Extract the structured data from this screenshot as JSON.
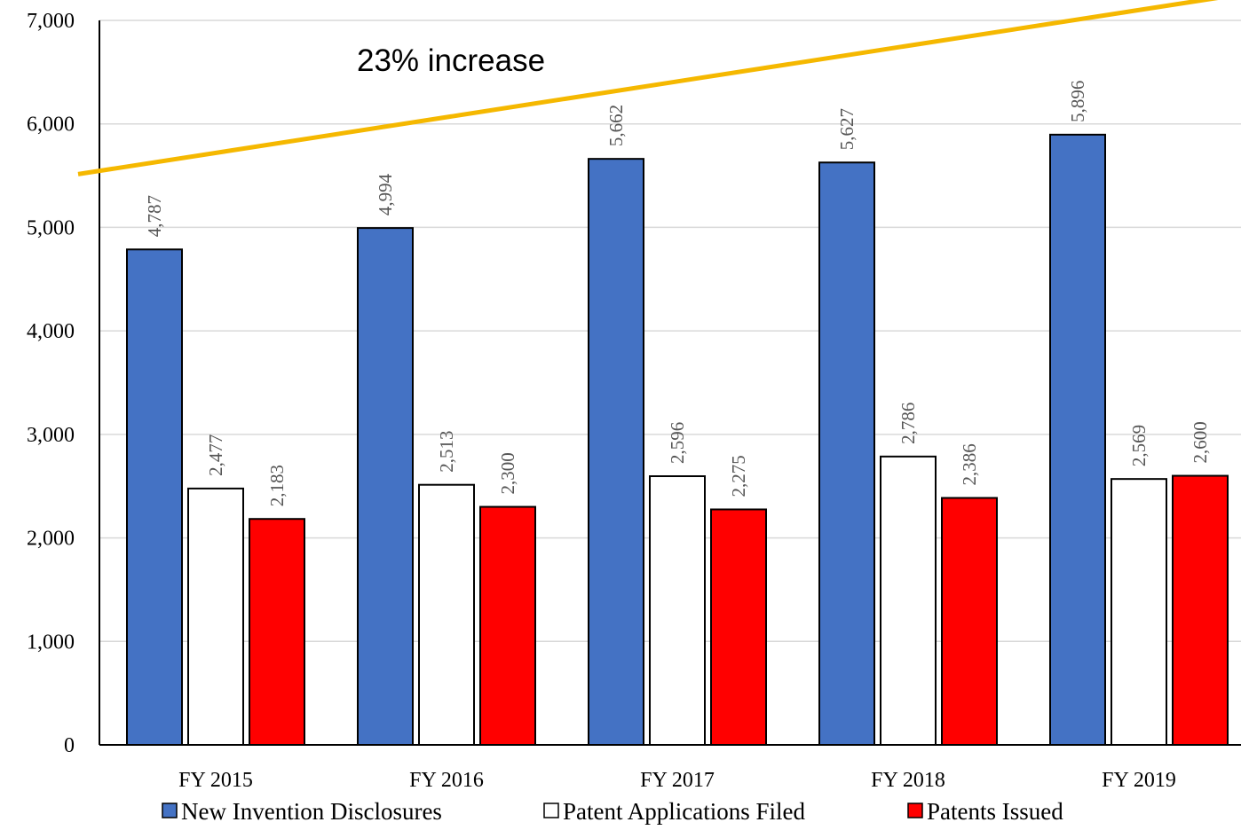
{
  "chart_data": {
    "type": "bar",
    "title": "",
    "xlabel": "",
    "ylabel": "",
    "categories": [
      "FY 2015",
      "FY 2016",
      "FY 2017",
      "FY 2018",
      "FY 2019"
    ],
    "series": [
      {
        "name": "New Invention Disclosures",
        "color": "#4472C4",
        "values": [
          4787,
          4994,
          5662,
          5627,
          5896
        ],
        "labels": [
          "4,787",
          "4,994",
          "5,662",
          "5,627",
          "5,896"
        ]
      },
      {
        "name": "Patent Applications Filed",
        "color": "#FFFFFF",
        "values": [
          2477,
          2513,
          2596,
          2786,
          2569
        ],
        "labels": [
          "2,477",
          "2,513",
          "2,596",
          "2,786",
          "2,569"
        ]
      },
      {
        "name": "Patents Issued",
        "color": "#FF0000",
        "values": [
          2183,
          2300,
          2275,
          2386,
          2600
        ],
        "labels": [
          "2,183",
          "2,300",
          "2,275",
          "2,386",
          "2,600"
        ]
      }
    ],
    "ylim": [
      0,
      7000
    ],
    "yticks": [
      0,
      1000,
      2000,
      3000,
      4000,
      5000,
      6000,
      7000
    ],
    "ytick_labels": [
      "0",
      "1,000",
      "2,000",
      "3,000",
      "4,000",
      "5,000",
      "6,000",
      "7,000"
    ],
    "grid": true,
    "legend_position": "bottom",
    "annotation": {
      "text": "23% increase",
      "line_color": "#F5B800",
      "line_start": {
        "category": "FY 2015",
        "value": 5720
      },
      "line_end": {
        "category": "FY 2019",
        "value": 7100
      }
    }
  }
}
